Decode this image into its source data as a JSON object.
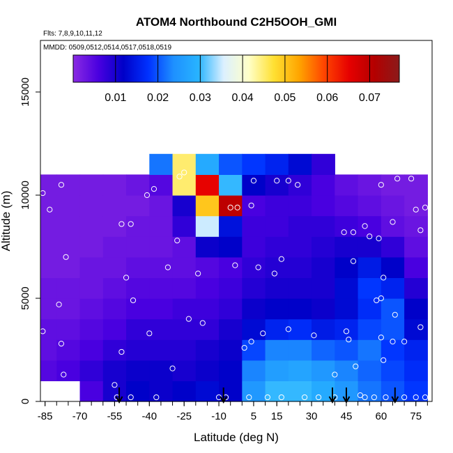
{
  "chart_data": {
    "type": "heatmap",
    "title": "ATOM4 Northbound C2H5OOH_GMI",
    "notes": {
      "flights": "Flts: 7,8,9,10,11,12",
      "dates": "MMDD: 0509,0512,0514,0517,0518,0519"
    },
    "xlabel": "Latitude (deg N)",
    "ylabel": "Altitude (m)",
    "xlim": [
      -87,
      82
    ],
    "ylim": [
      0,
      17500
    ],
    "x_ticks": [
      "-85",
      "-70",
      "-55",
      "-40",
      "-25",
      "-10",
      "5",
      "15",
      "30",
      "45",
      "60",
      "75"
    ],
    "x_tick_values": [
      -85,
      -70,
      -55,
      -40,
      -25,
      -10,
      5,
      15,
      30,
      45,
      60,
      75
    ],
    "y_ticks": [
      "0",
      "5000",
      "10000",
      "15000"
    ],
    "y_tick_values": [
      0,
      5000,
      10000,
      15000
    ],
    "colorbar": {
      "range": [
        0,
        0.077
      ],
      "tick_labels": [
        "0.01",
        "0.02",
        "0.03",
        "0.04",
        "0.05",
        "0.06",
        "0.07"
      ],
      "tick_values": [
        0.01,
        0.02,
        0.03,
        0.04,
        0.05,
        0.06,
        0.07
      ],
      "colors": [
        "#8a2be2",
        "#4a00e0",
        "#0000c8",
        "#0032ff",
        "#1e90ff",
        "#28b4ff",
        "#dcf0ff",
        "#ffffc8",
        "#ffe032",
        "#ffa500",
        "#ff4500",
        "#e60000",
        "#b40000",
        "#8b1a1a"
      ]
    },
    "arrow_latitudes": [
      -53,
      -8,
      39,
      45,
      66
    ],
    "concentration_grid": {
      "latitudes": [
        -85,
        -75,
        -65,
        -55,
        -45,
        -35,
        -25,
        -15,
        -5,
        5,
        15,
        25,
        35,
        45,
        55,
        65,
        75
      ],
      "altitudes": [
        500,
        1500,
        2500,
        3500,
        4500,
        5500,
        6500,
        7500,
        8500,
        9500,
        10500,
        11500
      ],
      "values": [
        [
          null,
          null,
          0.006,
          0.01,
          0.012,
          0.011,
          0.012,
          0.013,
          0.012,
          0.025,
          0.03,
          0.03,
          0.028,
          0.025,
          0.022,
          0.02,
          0.018
        ],
        [
          0.005,
          0.006,
          0.008,
          0.01,
          0.011,
          0.011,
          0.01,
          0.011,
          0.012,
          0.023,
          0.026,
          0.027,
          0.025,
          0.023,
          0.021,
          0.019,
          0.017
        ],
        [
          0.004,
          0.005,
          0.006,
          0.008,
          0.009,
          0.009,
          0.009,
          0.01,
          0.011,
          0.019,
          0.023,
          0.023,
          0.021,
          0.02,
          0.022,
          0.018,
          0.016
        ],
        [
          0.004,
          0.004,
          0.005,
          0.006,
          0.008,
          0.008,
          0.008,
          0.008,
          0.01,
          0.013,
          0.016,
          0.017,
          0.015,
          0.016,
          0.019,
          0.02,
          0.013
        ],
        [
          0.003,
          0.003,
          0.004,
          0.005,
          0.006,
          0.006,
          0.007,
          0.007,
          0.008,
          0.011,
          0.012,
          0.012,
          0.011,
          0.013,
          0.017,
          0.02,
          0.012
        ],
        [
          0.003,
          0.003,
          0.003,
          0.004,
          0.005,
          0.005,
          0.005,
          0.006,
          0.007,
          0.009,
          0.01,
          0.01,
          0.01,
          0.013,
          0.018,
          0.016,
          0.009
        ],
        [
          0.002,
          0.002,
          0.003,
          0.003,
          0.004,
          0.004,
          0.004,
          0.005,
          0.006,
          0.008,
          0.009,
          0.009,
          0.01,
          0.012,
          0.015,
          0.012,
          0.006
        ],
        [
          0.002,
          0.002,
          0.002,
          0.003,
          0.003,
          0.003,
          0.004,
          0.011,
          0.012,
          0.007,
          0.008,
          0.008,
          0.009,
          0.01,
          0.01,
          0.008,
          0.004
        ],
        [
          0.002,
          0.002,
          0.002,
          0.002,
          0.003,
          0.003,
          0.008,
          0.035,
          0.014,
          0.007,
          0.007,
          0.008,
          0.008,
          0.007,
          0.006,
          0.004,
          0.003
        ],
        [
          0.002,
          0.002,
          0.002,
          0.002,
          0.002,
          0.003,
          0.01,
          0.05,
          0.07,
          0.006,
          0.007,
          0.007,
          0.006,
          0.005,
          0.004,
          0.003,
          0.002
        ],
        [
          0.002,
          0.002,
          0.002,
          0.002,
          0.003,
          0.005,
          0.045,
          0.065,
          0.03,
          0.012,
          0.01,
          0.008,
          0.006,
          0.004,
          0.003,
          0.002,
          0.002
        ],
        [
          null,
          null,
          null,
          null,
          null,
          0.022,
          0.045,
          0.028,
          0.02,
          0.018,
          0.016,
          0.013,
          0.008,
          null,
          null,
          null,
          null
        ]
      ]
    },
    "samples": [
      {
        "x": -86,
        "y": 10100
      },
      {
        "x": -83,
        "y": 9300
      },
      {
        "x": -78,
        "y": 10500
      },
      {
        "x": -76,
        "y": 7000
      },
      {
        "x": -79,
        "y": 4700
      },
      {
        "x": -86,
        "y": 3400
      },
      {
        "x": -78,
        "y": 2800
      },
      {
        "x": -77,
        "y": 1300
      },
      {
        "x": -55,
        "y": 800
      },
      {
        "x": -54,
        "y": 200
      },
      {
        "x": -52,
        "y": 2400
      },
      {
        "x": -48,
        "y": 200
      },
      {
        "x": -52,
        "y": 8600
      },
      {
        "x": -48,
        "y": 8600
      },
      {
        "x": -50,
        "y": 6000
      },
      {
        "x": -47,
        "y": 4900
      },
      {
        "x": -41,
        "y": 10000
      },
      {
        "x": -38,
        "y": 10300
      },
      {
        "x": -40,
        "y": 3300
      },
      {
        "x": -37,
        "y": 200
      },
      {
        "x": -30,
        "y": 1600
      },
      {
        "x": -32,
        "y": 6500
      },
      {
        "x": -28,
        "y": 7800
      },
      {
        "x": -27,
        "y": 10900
      },
      {
        "x": -25,
        "y": 11100
      },
      {
        "x": -23,
        "y": 4000
      },
      {
        "x": -19,
        "y": 6200
      },
      {
        "x": -17,
        "y": 3800
      },
      {
        "x": -10,
        "y": 200
      },
      {
        "x": -7,
        "y": 200
      },
      {
        "x": -5,
        "y": 9400
      },
      {
        "x": -3,
        "y": 6600
      },
      {
        "x": -2,
        "y": 9400
      },
      {
        "x": 1,
        "y": 2600
      },
      {
        "x": 3,
        "y": 200
      },
      {
        "x": 4,
        "y": 9500
      },
      {
        "x": 4,
        "y": 2900
      },
      {
        "x": 5,
        "y": 10700
      },
      {
        "x": 9,
        "y": 3300
      },
      {
        "x": 7,
        "y": 6500
      },
      {
        "x": 15,
        "y": 10700
      },
      {
        "x": 14,
        "y": 6200
      },
      {
        "x": 17,
        "y": 6900
      },
      {
        "x": 20,
        "y": 10700
      },
      {
        "x": 20,
        "y": 3500
      },
      {
        "x": 17,
        "y": 200
      },
      {
        "x": 24,
        "y": 10500
      },
      {
        "x": 27,
        "y": 200
      },
      {
        "x": 31,
        "y": 3200
      },
      {
        "x": 40,
        "y": 200
      },
      {
        "x": 44,
        "y": 8200
      },
      {
        "x": 48,
        "y": 8200
      },
      {
        "x": 45,
        "y": 3400
      },
      {
        "x": 46,
        "y": 3000
      },
      {
        "x": 48,
        "y": 6800
      },
      {
        "x": 49,
        "y": 11700
      },
      {
        "x": 55,
        "y": 11300
      },
      {
        "x": 53,
        "y": 8500
      },
      {
        "x": 55,
        "y": 8000
      },
      {
        "x": 59,
        "y": 7900
      },
      {
        "x": 60,
        "y": 10500
      },
      {
        "x": 58,
        "y": 4900
      },
      {
        "x": 60,
        "y": 5000
      },
      {
        "x": 61,
        "y": 6000
      },
      {
        "x": 60,
        "y": 3100
      },
      {
        "x": 61,
        "y": 2000
      },
      {
        "x": 65,
        "y": 2900
      },
      {
        "x": 65,
        "y": 8700
      },
      {
        "x": 66,
        "y": 4200
      },
      {
        "x": 67,
        "y": 10800
      },
      {
        "x": 70,
        "y": 2900
      },
      {
        "x": 70,
        "y": 200
      },
      {
        "x": 73,
        "y": 10800
      },
      {
        "x": 75,
        "y": 9300
      },
      {
        "x": 77,
        "y": 3600
      },
      {
        "x": 77,
        "y": 8300
      },
      {
        "x": 79,
        "y": 9400
      },
      {
        "x": 82,
        "y": 6300
      },
      {
        "x": 75,
        "y": 200
      },
      {
        "x": 79,
        "y": 200
      },
      {
        "x": 53,
        "y": 200
      },
      {
        "x": 57,
        "y": 200
      },
      {
        "x": 49,
        "y": 1700
      },
      {
        "x": 51,
        "y": 300
      },
      {
        "x": 40,
        "y": 1300
      },
      {
        "x": 62,
        "y": 200
      },
      {
        "x": 11,
        "y": 200
      },
      {
        "x": 33,
        "y": 200
      }
    ]
  }
}
